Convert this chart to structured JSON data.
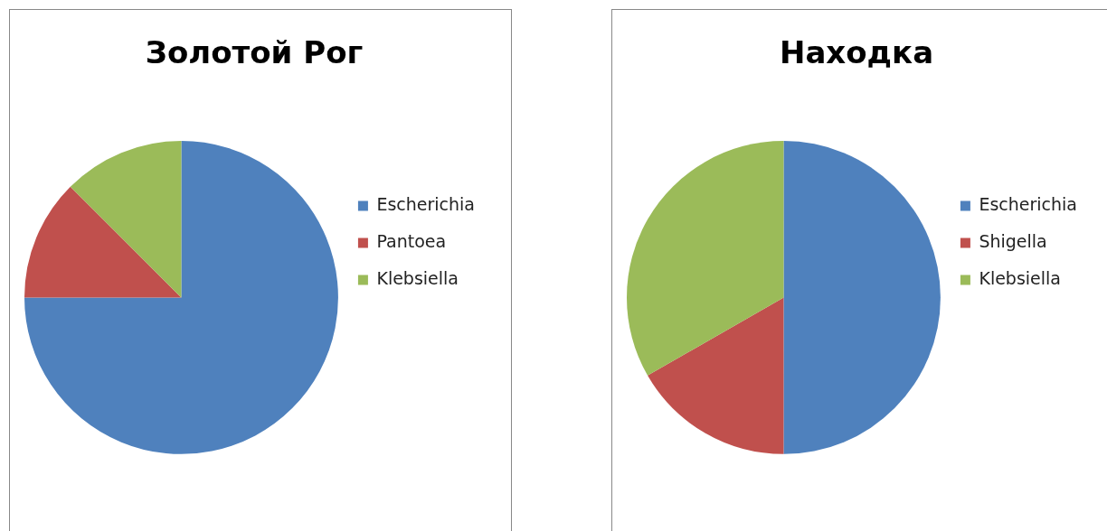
{
  "chart_data": [
    {
      "type": "pie",
      "title": "Золотой Рог",
      "categories": [
        "Escherichia",
        "Pantoea",
        "Klebsiella"
      ],
      "values": [
        75,
        12.5,
        12.5
      ],
      "colors": [
        "#4f81bd",
        "#c0504d",
        "#9bbb59"
      ],
      "legend": "right"
    },
    {
      "type": "pie",
      "title": "Находка",
      "categories": [
        "Escherichia",
        "Shigella",
        "Klebsiella"
      ],
      "values": [
        50,
        16.7,
        33.3
      ],
      "colors": [
        "#4f81bd",
        "#c0504d",
        "#9bbb59"
      ],
      "legend": "right"
    }
  ]
}
